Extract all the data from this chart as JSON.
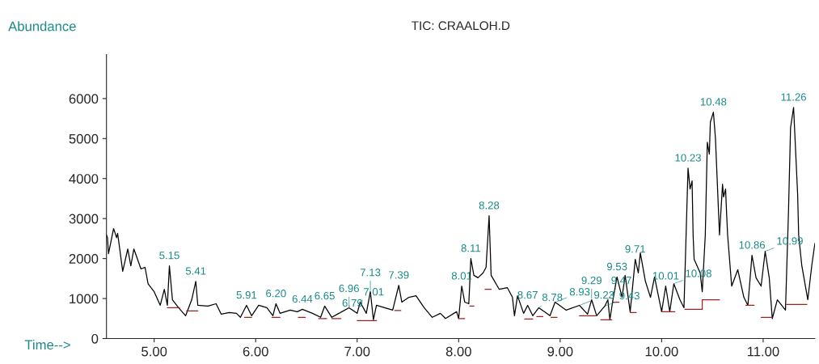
{
  "chart_data": {
    "type": "line",
    "title": "TIC: CRAALOH.D",
    "xlabel": "Time-->",
    "ylabel": "Abundance",
    "xlim": [
      4.53,
      11.51
    ],
    "xticks": [
      {
        "value": 5,
        "label": "5.00"
      },
      {
        "value": 6,
        "label": "6.00"
      },
      {
        "value": 7,
        "label": "7.00"
      },
      {
        "value": 8,
        "label": "8.00"
      },
      {
        "value": 9,
        "label": "9.00"
      },
      {
        "value": 10,
        "label": "10.00"
      },
      {
        "value": 11,
        "label": "11.00"
      }
    ],
    "ylim": [
      0,
      7100
    ],
    "yticks": [
      0,
      1000,
      2000,
      3000,
      4000,
      5000,
      6000
    ],
    "grid": false,
    "legend": false,
    "marker": "none",
    "line_style": "solid",
    "series": [
      {
        "color": "#000000",
        "x": [
          4.53,
          4.54,
          4.55,
          4.6,
          4.63,
          4.64,
          4.69,
          4.74,
          4.77,
          4.8,
          4.87,
          4.91,
          4.94,
          5.0,
          5.06,
          5.1,
          5.13,
          5.15,
          5.18,
          5.24,
          5.31,
          5.37,
          5.41,
          5.43,
          5.53,
          5.61,
          5.66,
          5.74,
          5.81,
          5.85,
          5.91,
          5.96,
          6.03,
          6.11,
          6.17,
          6.2,
          6.24,
          6.34,
          6.41,
          6.46,
          6.56,
          6.64,
          6.68,
          6.75,
          6.82,
          6.92,
          7.0,
          7.03,
          7.09,
          7.13,
          7.16,
          7.19,
          7.27,
          7.35,
          7.41,
          7.44,
          7.51,
          7.58,
          7.66,
          7.74,
          7.82,
          7.87,
          7.98,
          8.0,
          8.03,
          8.06,
          8.1,
          8.12,
          8.15,
          8.19,
          8.24,
          8.27,
          8.3,
          8.32,
          8.4,
          8.48,
          8.53,
          8.55,
          8.58,
          8.64,
          8.68,
          8.73,
          8.79,
          8.9,
          8.95,
          9.06,
          9.19,
          9.27,
          9.31,
          9.36,
          9.44,
          9.47,
          9.49,
          9.52,
          9.56,
          9.61,
          9.64,
          9.69,
          9.74,
          9.77,
          9.79,
          9.84,
          9.89,
          9.93,
          10.0,
          10.04,
          10.08,
          10.12,
          10.18,
          10.22,
          10.26,
          10.28,
          10.3,
          10.31,
          10.32,
          10.38,
          10.4,
          10.43,
          10.45,
          10.47,
          10.48,
          10.51,
          10.53,
          10.57,
          10.6,
          10.61,
          10.63,
          10.64,
          10.65,
          10.69,
          10.75,
          10.81,
          10.85,
          10.89,
          10.93,
          10.98,
          11.02,
          11.06,
          11.09,
          11.14,
          11.22,
          11.25,
          11.27,
          11.3,
          11.34,
          11.35,
          11.38,
          11.44,
          11.48,
          11.51
        ],
        "values": [
          2590,
          2520,
          2120,
          2750,
          2520,
          2630,
          1680,
          2240,
          1820,
          2240,
          1740,
          1780,
          1370,
          1170,
          830,
          1230,
          830,
          1820,
          970,
          770,
          570,
          970,
          1430,
          830,
          810,
          870,
          610,
          650,
          630,
          530,
          830,
          570,
          830,
          770,
          570,
          870,
          630,
          710,
          670,
          730,
          630,
          530,
          810,
          530,
          630,
          770,
          630,
          910,
          630,
          1170,
          470,
          830,
          770,
          710,
          1330,
          910,
          1030,
          1070,
          770,
          530,
          630,
          500,
          670,
          500,
          1310,
          910,
          870,
          2000,
          1580,
          1520,
          1640,
          1780,
          3070,
          1580,
          1230,
          1270,
          1030,
          570,
          1070,
          630,
          830,
          570,
          770,
          570,
          910,
          710,
          830,
          610,
          970,
          570,
          810,
          970,
          470,
          970,
          1540,
          1030,
          1580,
          670,
          1980,
          1640,
          2140,
          1430,
          1030,
          1540,
          670,
          1310,
          670,
          1370,
          970,
          770,
          4260,
          3740,
          3940,
          2590,
          1980,
          1640,
          1170,
          2590,
          4910,
          4610,
          5410,
          5660,
          5010,
          2590,
          3860,
          3540,
          3740,
          3130,
          2590,
          1310,
          1720,
          1030,
          830,
          2080,
          1520,
          1310,
          2180,
          1520,
          500,
          970,
          710,
          3190,
          5270,
          5780,
          3600,
          2590,
          1840,
          970,
          1840,
          2380
        ]
      },
      {
        "color": "#a02020",
        "x": [
          5.13,
          5.25,
          5.26,
          5.32,
          5.43,
          5.44,
          5.89,
          5.96,
          5.97,
          6.16,
          6.24,
          6.25,
          6.42,
          6.49,
          6.5,
          6.62,
          6.7,
          6.71,
          6.75,
          6.84,
          6.85,
          7.0,
          7.19,
          7.2,
          7.37,
          7.43,
          7.44,
          8.0,
          8.06,
          8.07,
          8.11,
          8.15,
          8.16,
          8.26,
          8.32,
          8.33,
          8.65,
          8.73,
          8.74,
          8.77,
          8.83,
          8.84,
          8.91,
          8.97,
          8.98,
          9.19,
          9.35,
          9.36,
          9.4,
          9.51,
          9.515,
          9.52,
          9.58,
          9.59,
          9.69,
          9.75,
          9.76,
          10.0,
          10.13,
          10.14,
          10.23,
          10.4,
          10.4,
          10.57,
          10.58,
          10.83,
          10.91,
          10.92,
          10.98,
          11.09,
          11.1,
          11.23,
          11.43
        ],
        "values": [
          770,
          770,
          null,
          690,
          690,
          null,
          530,
          530,
          null,
          530,
          530,
          null,
          530,
          530,
          null,
          500,
          500,
          null,
          500,
          500,
          null,
          450,
          450,
          null,
          700,
          700,
          null,
          500,
          500,
          null,
          810,
          810,
          null,
          1230,
          1230,
          null,
          490,
          490,
          null,
          550,
          550,
          null,
          530,
          530,
          null,
          570,
          570,
          null,
          470,
          470,
          null,
          910,
          910,
          null,
          650,
          650,
          null,
          670,
          670,
          null,
          730,
          730,
          970,
          970,
          null,
          830,
          830,
          null,
          530,
          530,
          null,
          850,
          850
        ]
      }
    ],
    "annotations": [
      {
        "text": "5.15",
        "x": 5.15,
        "y": 1820
      },
      {
        "text": "5.41",
        "x": 5.41,
        "y": 1430
      },
      {
        "text": "5.91",
        "x": 5.91,
        "y": 830
      },
      {
        "text": "6.20",
        "x": 6.2,
        "y": 870
      },
      {
        "text": "6.44",
        "x": 6.46,
        "y": 730
      },
      {
        "text": "6.65",
        "x": 6.68,
        "y": 810
      },
      {
        "text": "6.79",
        "x": 6.82,
        "y": 630
      },
      {
        "text": "6.96",
        "x": 6.92,
        "y": 770
      },
      {
        "text": "7.01",
        "x": 7.03,
        "y": 910
      },
      {
        "text": "7.13",
        "x": 7.13,
        "y": 1170
      },
      {
        "text": "7.39",
        "x": 7.41,
        "y": 1330
      },
      {
        "text": "8.01",
        "x": 8.03,
        "y": 1310
      },
      {
        "text": "8.11",
        "x": 8.12,
        "y": 2000
      },
      {
        "text": "8.28",
        "x": 8.3,
        "y": 3070
      },
      {
        "text": "8.67",
        "x": 8.68,
        "y": 830
      },
      {
        "text": "8.78",
        "x": 8.79,
        "y": 770
      },
      {
        "text": "8.93",
        "x": 8.95,
        "y": 910
      },
      {
        "text": "9.23",
        "x": 9.19,
        "y": 830
      },
      {
        "text": "9.29",
        "x": 9.31,
        "y": 970
      },
      {
        "text": "9.43",
        "x": 9.44,
        "y": 810
      },
      {
        "text": "9.47",
        "x": 9.47,
        "y": 970
      },
      {
        "text": "9.53",
        "x": 9.56,
        "y": 1540
      },
      {
        "text": "9.71",
        "x": 9.74,
        "y": 1980
      },
      {
        "text": "10.01",
        "x": 10.04,
        "y": 1310
      },
      {
        "text": "10.08",
        "x": 10.12,
        "y": 1370
      },
      {
        "text": "10.23",
        "x": 10.26,
        "y": 4260
      },
      {
        "text": "10.48",
        "x": 10.51,
        "y": 5660
      },
      {
        "text": "10.86",
        "x": 10.89,
        "y": 2080
      },
      {
        "text": "10.99",
        "x": 11.02,
        "y": 2180
      },
      {
        "text": "11.26",
        "x": 11.3,
        "y": 5780
      }
    ]
  }
}
